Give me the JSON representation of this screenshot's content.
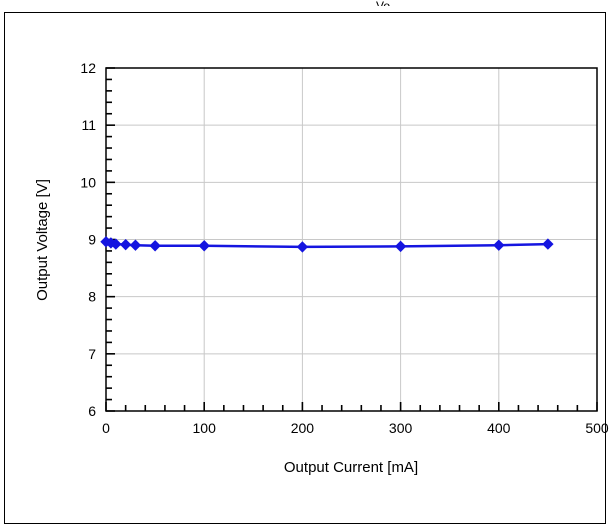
{
  "chart_data": {
    "type": "line",
    "title": "",
    "xlabel": "Output Current [mA]",
    "ylabel": "Output Voltage [V]",
    "xlim": [
      0,
      500
    ],
    "ylim": [
      6,
      12
    ],
    "x_ticks": [
      0,
      100,
      200,
      300,
      400,
      500
    ],
    "y_ticks": [
      6,
      7,
      8,
      9,
      10,
      11,
      12
    ],
    "grid": true,
    "series": [
      {
        "color": "#1515e0",
        "x": [
          0,
          5,
          10,
          20,
          30,
          50,
          100,
          200,
          300,
          400,
          450
        ],
        "y": [
          8.96,
          8.94,
          8.92,
          8.91,
          8.9,
          8.89,
          8.89,
          8.87,
          8.88,
          8.9,
          8.92
        ]
      }
    ]
  },
  "header_fragment": "Vo"
}
